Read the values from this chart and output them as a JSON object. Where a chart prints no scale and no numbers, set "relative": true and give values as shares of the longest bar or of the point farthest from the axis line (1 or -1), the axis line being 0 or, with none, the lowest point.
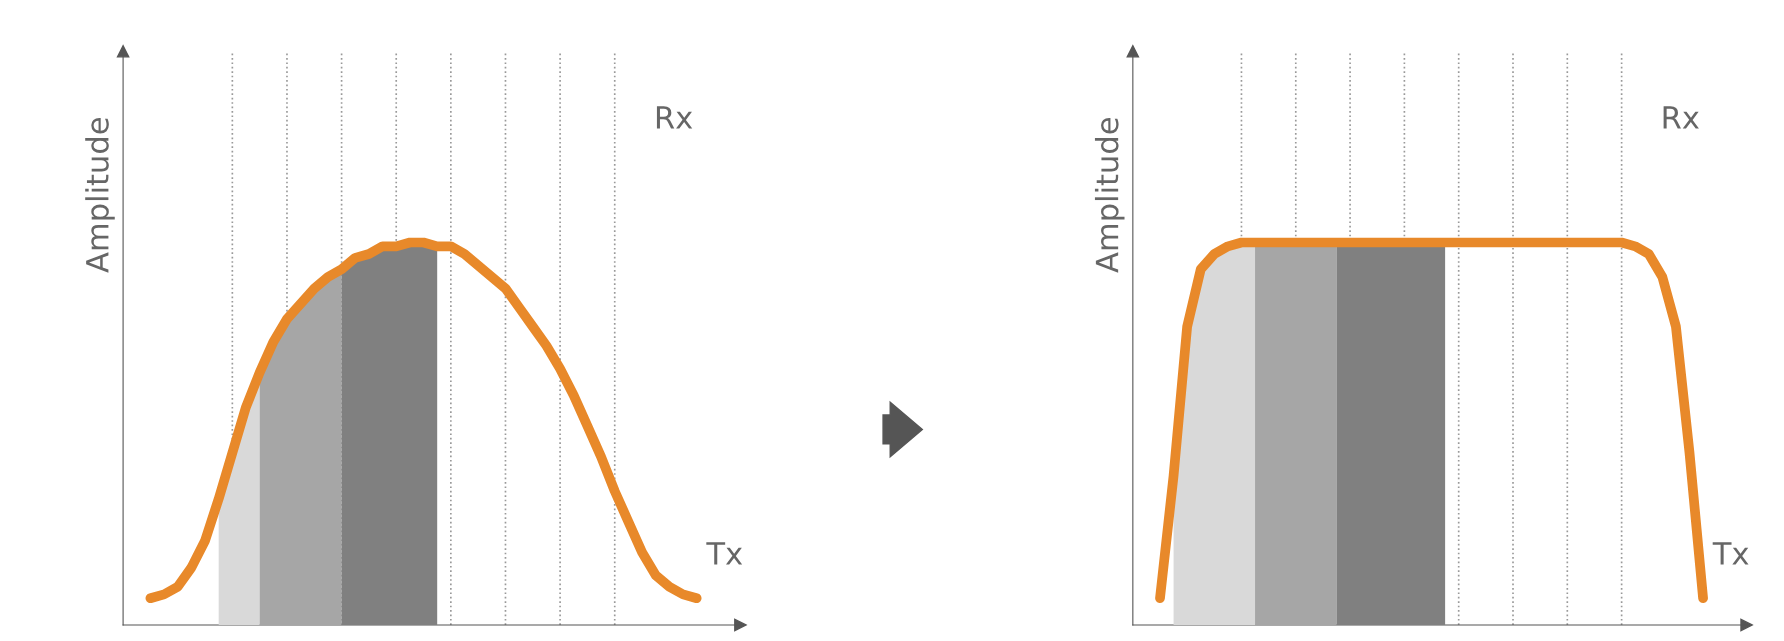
{
  "chart_data": [
    {
      "type": "line",
      "relative": true,
      "ylabel": "Amplitude",
      "grid": "x",
      "legend": false,
      "marker": "none",
      "line_style": "solid",
      "categories": [
        null,
        null,
        null,
        null,
        null,
        null,
        null,
        null,
        null,
        null,
        null,
        null,
        null,
        null,
        null,
        null,
        null,
        null,
        null,
        null,
        null,
        null,
        null,
        null,
        null,
        null,
        null,
        null,
        null,
        null,
        null,
        null,
        null,
        null,
        null,
        null,
        null,
        null,
        null,
        null,
        null
      ],
      "series": [
        {
          "type": "area",
          "color": "#d9d9d9",
          "values": [
            null,
            null,
            null,
            null,
            null,
            0.33,
            0.45,
            0.57,
            0.66,
            null,
            null,
            null,
            null,
            null,
            null,
            null,
            null,
            null,
            null,
            null,
            null,
            null,
            null,
            null,
            null,
            null,
            null,
            null,
            null,
            null,
            null,
            null,
            null,
            null,
            null,
            null,
            null,
            null,
            null,
            null,
            null
          ]
        },
        {
          "type": "area",
          "color": "#a6a6a6",
          "values": [
            null,
            null,
            null,
            null,
            null,
            null,
            null,
            null,
            0.66,
            0.74,
            0.8,
            0.84,
            0.88,
            0.91,
            0.93,
            null,
            null,
            null,
            null,
            null,
            null,
            null,
            null,
            null,
            null,
            null,
            null,
            null,
            null,
            null,
            null,
            null,
            null,
            null,
            null,
            null,
            null,
            null,
            null,
            null,
            null
          ]
        },
        {
          "type": "area",
          "color": "#808080",
          "values": [
            null,
            null,
            null,
            null,
            null,
            null,
            null,
            null,
            null,
            null,
            null,
            null,
            null,
            null,
            0.93,
            0.96,
            0.97,
            0.99,
            0.99,
            1.0,
            1.0,
            0.99,
            null,
            null,
            null,
            null,
            null,
            null,
            null,
            null,
            null,
            null,
            null,
            null,
            null,
            null,
            null,
            null,
            null,
            null,
            null
          ]
        },
        {
          "color": "#e8892a",
          "values": [
            0.07,
            0.08,
            0.1,
            0.15,
            0.22,
            0.33,
            0.45,
            0.57,
            0.66,
            0.74,
            0.8,
            0.84,
            0.88,
            0.91,
            0.93,
            0.96,
            0.97,
            0.99,
            0.99,
            1.0,
            1.0,
            0.99,
            0.99,
            0.97,
            0.94,
            0.91,
            0.88,
            0.83,
            0.78,
            0.73,
            0.67,
            0.6,
            0.52,
            0.44,
            0.35,
            0.27,
            0.19,
            0.13,
            0.1,
            0.08,
            0.07
          ]
        }
      ],
      "annotations": [
        "Rx",
        "Tx"
      ]
    },
    {
      "type": "line",
      "relative": true,
      "ylabel": "Amplitude",
      "grid": "x",
      "legend": false,
      "marker": "none",
      "line_style": "solid",
      "categories": [
        null,
        null,
        null,
        null,
        null,
        null,
        null,
        null,
        null,
        null,
        null,
        null,
        null,
        null,
        null,
        null,
        null,
        null,
        null,
        null,
        null,
        null,
        null,
        null,
        null,
        null,
        null,
        null,
        null,
        null,
        null,
        null,
        null,
        null,
        null,
        null,
        null,
        null,
        null,
        null,
        null
      ],
      "series": [
        {
          "type": "area",
          "color": "#d9d9d9",
          "values": [
            null,
            0.39,
            0.78,
            0.93,
            0.97,
            0.99,
            1.0,
            1.0,
            null,
            null,
            null,
            null,
            null,
            null,
            null,
            null,
            null,
            null,
            null,
            null,
            null,
            null,
            null,
            null,
            null,
            null,
            null,
            null,
            null,
            null,
            null,
            null,
            null,
            null,
            null,
            null,
            null,
            null,
            null,
            null,
            null
          ]
        },
        {
          "type": "area",
          "color": "#a6a6a6",
          "values": [
            null,
            null,
            null,
            null,
            null,
            null,
            null,
            1.0,
            1.0,
            1.0,
            1.0,
            1.0,
            1.0,
            1.0,
            null,
            null,
            null,
            null,
            null,
            null,
            null,
            null,
            null,
            null,
            null,
            null,
            null,
            null,
            null,
            null,
            null,
            null,
            null,
            null,
            null,
            null,
            null,
            null,
            null,
            null,
            null
          ]
        },
        {
          "type": "area",
          "color": "#808080",
          "values": [
            null,
            null,
            null,
            null,
            null,
            null,
            null,
            null,
            null,
            null,
            null,
            null,
            null,
            1.0,
            1.0,
            1.0,
            1.0,
            1.0,
            1.0,
            1.0,
            1.0,
            1.0,
            null,
            null,
            null,
            null,
            null,
            null,
            null,
            null,
            null,
            null,
            null,
            null,
            null,
            null,
            null,
            null,
            null,
            null,
            null
          ]
        },
        {
          "color": "#e8892a",
          "values": [
            0.07,
            0.39,
            0.78,
            0.93,
            0.97,
            0.99,
            1.0,
            1.0,
            1.0,
            1.0,
            1.0,
            1.0,
            1.0,
            1.0,
            1.0,
            1.0,
            1.0,
            1.0,
            1.0,
            1.0,
            1.0,
            1.0,
            1.0,
            1.0,
            1.0,
            1.0,
            1.0,
            1.0,
            1.0,
            1.0,
            1.0,
            1.0,
            1.0,
            1.0,
            1.0,
            0.99,
            0.97,
            0.91,
            0.78,
            0.45,
            0.07
          ]
        }
      ],
      "annotations": [
        "Rx",
        "Tx"
      ]
    }
  ]
}
